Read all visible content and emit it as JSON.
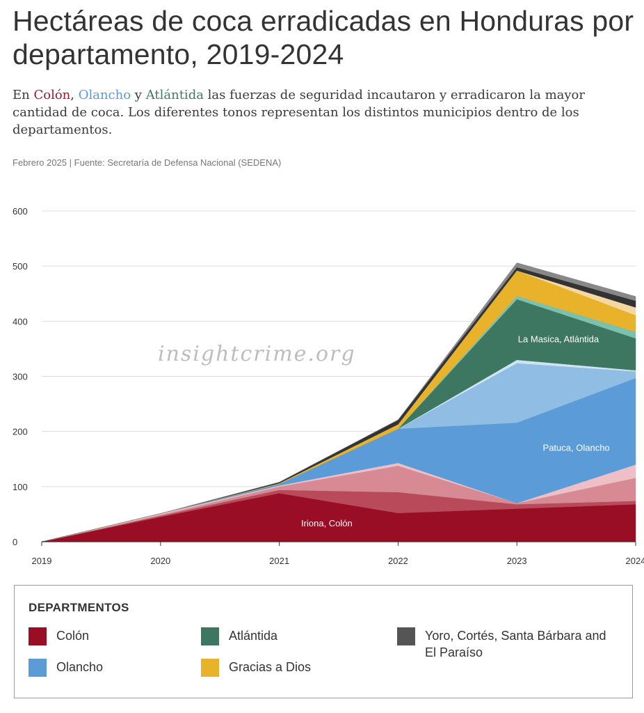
{
  "header": {
    "title": "Hectáreas de coca erradicadas en Honduras por departamento, 2019-2024",
    "subtitle": {
      "prefix": "En ",
      "colon": "Colón",
      "sep1": ", ",
      "olancho": "Olancho",
      "sep2": " y ",
      "atlantida": "Atlántida",
      "rest": " las fuerzas de seguridad incautaron y erradicaron la mayor cantidad de coca. Los diferentes tonos representan los distintos municipios dentro de los departamentos."
    },
    "source": "Febrero 2025 | Fuente: Secretaría de Defensa Nacional (SEDENA)"
  },
  "watermark": "insightcrime.org",
  "colors": {
    "colon": "#990e24",
    "olancho": "#5b9bd8",
    "atlantida": "#3d7762",
    "gracias_a_dios": "#e8b22a",
    "yoro_etc": "#555555"
  },
  "legend": {
    "title": "DEPARTMENTOS",
    "items": [
      {
        "label": "Colón",
        "color": "#990e24"
      },
      {
        "label": "Atlántida",
        "color": "#3d7762"
      },
      {
        "label": "Yoro, Cortés, Santa Bárbara and El Paraíso",
        "color": "#555555"
      },
      {
        "label": "Olancho",
        "color": "#5b9bd8"
      },
      {
        "label": "Gracias a Dios",
        "color": "#e8b22a"
      }
    ]
  },
  "chart_data": {
    "type": "area",
    "stacked": true,
    "x": [
      "2019",
      "2020",
      "2021",
      "2022",
      "2023",
      "2024"
    ],
    "ylim": [
      0,
      600
    ],
    "yticks": [
      0,
      100,
      200,
      300,
      400,
      500,
      600
    ],
    "grid": true,
    "legend_position": "bottom",
    "series": [
      {
        "name": "Iriona, Colón",
        "department": "Colón",
        "color": "#990e24",
        "values": [
          0,
          45,
          88,
          52,
          60,
          68
        ]
      },
      {
        "name": "",
        "department": "Colón",
        "color": "#b84a5a",
        "values": [
          0,
          2,
          6,
          38,
          8,
          6
        ]
      },
      {
        "name": "",
        "department": "Colón",
        "color": "#d88a94",
        "values": [
          0,
          2,
          6,
          48,
          2,
          42
        ]
      },
      {
        "name": "",
        "department": "Colón",
        "color": "#eebfc5",
        "values": [
          0,
          2,
          2,
          5,
          0,
          24
        ]
      },
      {
        "name": "Patuca, Olancho",
        "department": "Olancho",
        "color": "#5b9bd8",
        "values": [
          0,
          0,
          3,
          62,
          146,
          157
        ]
      },
      {
        "name": "",
        "department": "Olancho",
        "color": "#8fbde4",
        "values": [
          0,
          0,
          0,
          0,
          108,
          12
        ]
      },
      {
        "name": "",
        "department": "Olancho",
        "color": "#cfe3f3",
        "values": [
          0,
          0,
          0,
          0,
          6,
          2
        ]
      },
      {
        "name": "La Masica, Atlántida",
        "department": "Atlántida",
        "color": "#3d7762",
        "values": [
          0,
          0,
          0,
          0,
          110,
          58
        ]
      },
      {
        "name": "",
        "department": "Atlántida",
        "color": "#7cc0ae",
        "values": [
          0,
          0,
          0,
          0,
          6,
          12
        ]
      },
      {
        "name": "",
        "department": "Gracias a Dios",
        "color": "#e8b22a",
        "values": [
          0,
          0,
          1,
          8,
          46,
          30
        ]
      },
      {
        "name": "",
        "department": "Gracias a Dios",
        "color": "#f5d8a0",
        "values": [
          0,
          0,
          0,
          0,
          0,
          14
        ]
      },
      {
        "name": "",
        "department": "Yoro, Cortés, Santa Bárbara and El Paraíso",
        "color": "#333333",
        "values": [
          0,
          0,
          2,
          8,
          6,
          12
        ]
      },
      {
        "name": "",
        "department": "Yoro, Cortés, Santa Bárbara and El Paraíso",
        "color": "#888888",
        "values": [
          0,
          0,
          0,
          0,
          8,
          8
        ]
      }
    ],
    "annotations": [
      {
        "text": "Iriona, Colón",
        "x": 2021.4,
        "y": 28
      },
      {
        "text": "Patuca, Olancho",
        "x": 2023.5,
        "y": 165
      },
      {
        "text": "La Masica, Atlántida",
        "x": 2023.35,
        "y": 362
      }
    ]
  }
}
